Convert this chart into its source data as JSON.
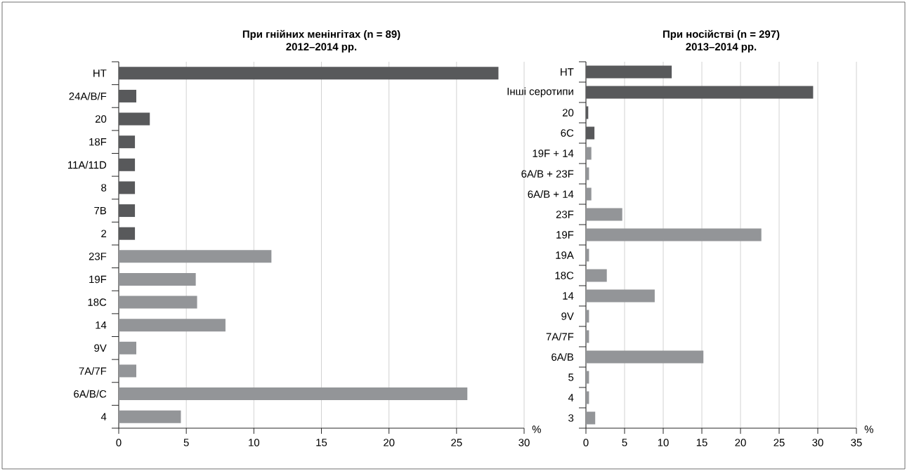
{
  "chart_data": [
    {
      "type": "bar",
      "orientation": "horizontal",
      "title": "При гнійних менінгітах (n = 89)",
      "subtitle": "2012–2014 рр.",
      "xlabel": "%",
      "categories": [
        "НТ",
        "24A/B/F",
        "20",
        "18F",
        "11A/11D",
        "8",
        "7B",
        "2",
        "23F",
        "19F",
        "18C",
        "14",
        "9V",
        "7A/7F",
        "6A/B/C",
        "4"
      ],
      "values": [
        28.1,
        1.3,
        2.3,
        1.2,
        1.2,
        1.2,
        1.2,
        1.2,
        11.3,
        5.7,
        5.8,
        7.9,
        1.3,
        1.3,
        25.8,
        4.6
      ],
      "colors": [
        "#58595b",
        "#58595b",
        "#58595b",
        "#58595b",
        "#58595b",
        "#58595b",
        "#58595b",
        "#58595b",
        "#939598",
        "#939598",
        "#939598",
        "#939598",
        "#939598",
        "#939598",
        "#939598",
        "#939598"
      ],
      "xlim": [
        0,
        30
      ],
      "xticks": [
        0,
        5,
        10,
        15,
        20,
        25,
        30
      ],
      "grid": "x"
    },
    {
      "type": "bar",
      "orientation": "horizontal",
      "title": "При носійстві (n = 297)",
      "subtitle": "2013–2014 рр.",
      "xlabel": "%",
      "categories": [
        "НТ",
        "Інші серотипи",
        "20",
        "6C",
        "19F + 14",
        "6A/B + 23F",
        "6A/B + 14",
        "23F",
        "19F",
        "19A",
        "18C",
        "14",
        "9V",
        "7A/7F",
        "6A/B",
        "5",
        "4",
        "3"
      ],
      "values": [
        11.1,
        29.4,
        0.3,
        1.1,
        0.7,
        0.4,
        0.7,
        4.7,
        22.7,
        0.4,
        2.7,
        8.9,
        0.4,
        0.4,
        15.2,
        0.4,
        0.4,
        1.2
      ],
      "colors": [
        "#58595b",
        "#58595b",
        "#58595b",
        "#58595b",
        "#939598",
        "#939598",
        "#939598",
        "#939598",
        "#939598",
        "#939598",
        "#939598",
        "#939598",
        "#939598",
        "#939598",
        "#939598",
        "#939598",
        "#939598",
        "#939598"
      ],
      "xlim": [
        0,
        35
      ],
      "xticks": [
        0,
        5,
        10,
        15,
        20,
        25,
        30,
        35
      ],
      "grid": "x"
    }
  ]
}
